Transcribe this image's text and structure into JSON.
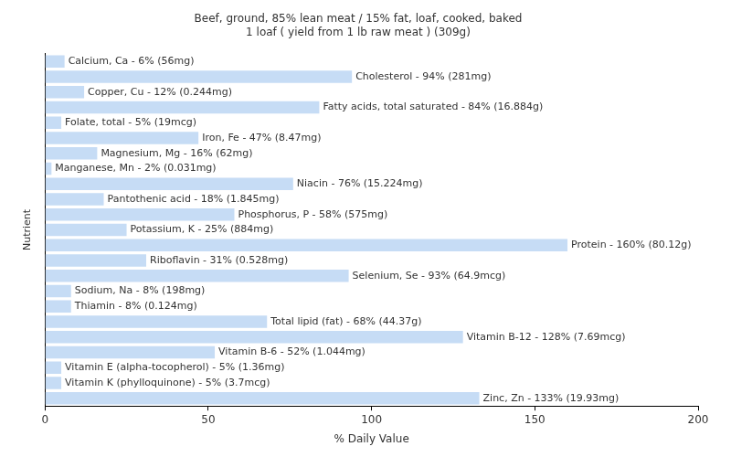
{
  "chart_data": {
    "type": "bar",
    "orientation": "horizontal",
    "title": [
      "Beef, ground, 85% lean meat / 15% fat, loaf, cooked, baked",
      "1 loaf ( yield from 1 lb raw meat ) (309g)"
    ],
    "x_label": "% Daily Value",
    "y_label": "Nutrient",
    "categories": [
      "Calcium, Ca - 6% (56mg)",
      "Cholesterol - 94% (281mg)",
      "Copper, Cu - 12% (0.244mg)",
      "Fatty acids, total saturated - 84% (16.884g)",
      "Folate, total - 5% (19mcg)",
      "Iron, Fe - 47% (8.47mg)",
      "Magnesium, Mg - 16% (62mg)",
      "Manganese, Mn - 2% (0.031mg)",
      "Niacin - 76% (15.224mg)",
      "Pantothenic acid - 18% (1.845mg)",
      "Phosphorus, P - 58% (575mg)",
      "Potassium, K - 25% (884mg)",
      "Protein - 160% (80.12g)",
      "Riboflavin - 31% (0.528mg)",
      "Selenium, Se - 93% (64.9mcg)",
      "Sodium, Na - 8% (198mg)",
      "Thiamin - 8% (0.124mg)",
      "Total lipid (fat) - 68% (44.37g)",
      "Vitamin B-12 - 128% (7.69mcg)",
      "Vitamin B-6 - 52% (1.044mg)",
      "Vitamin E (alpha-tocopherol) - 5% (1.36mg)",
      "Vitamin K (phylloquinone) - 5% (3.7mcg)",
      "Zinc, Zn - 133% (19.93mg)"
    ],
    "values": [
      6,
      94,
      12,
      84,
      5,
      47,
      16,
      2,
      76,
      18,
      58,
      25,
      160,
      31,
      93,
      8,
      8,
      68,
      128,
      52,
      5,
      5,
      133
    ],
    "color": "#c6dcf5",
    "xlim": [
      0,
      200
    ],
    "xticks": [
      0,
      50,
      100,
      150,
      200
    ],
    "grid": false,
    "tick_labels": "x"
  }
}
